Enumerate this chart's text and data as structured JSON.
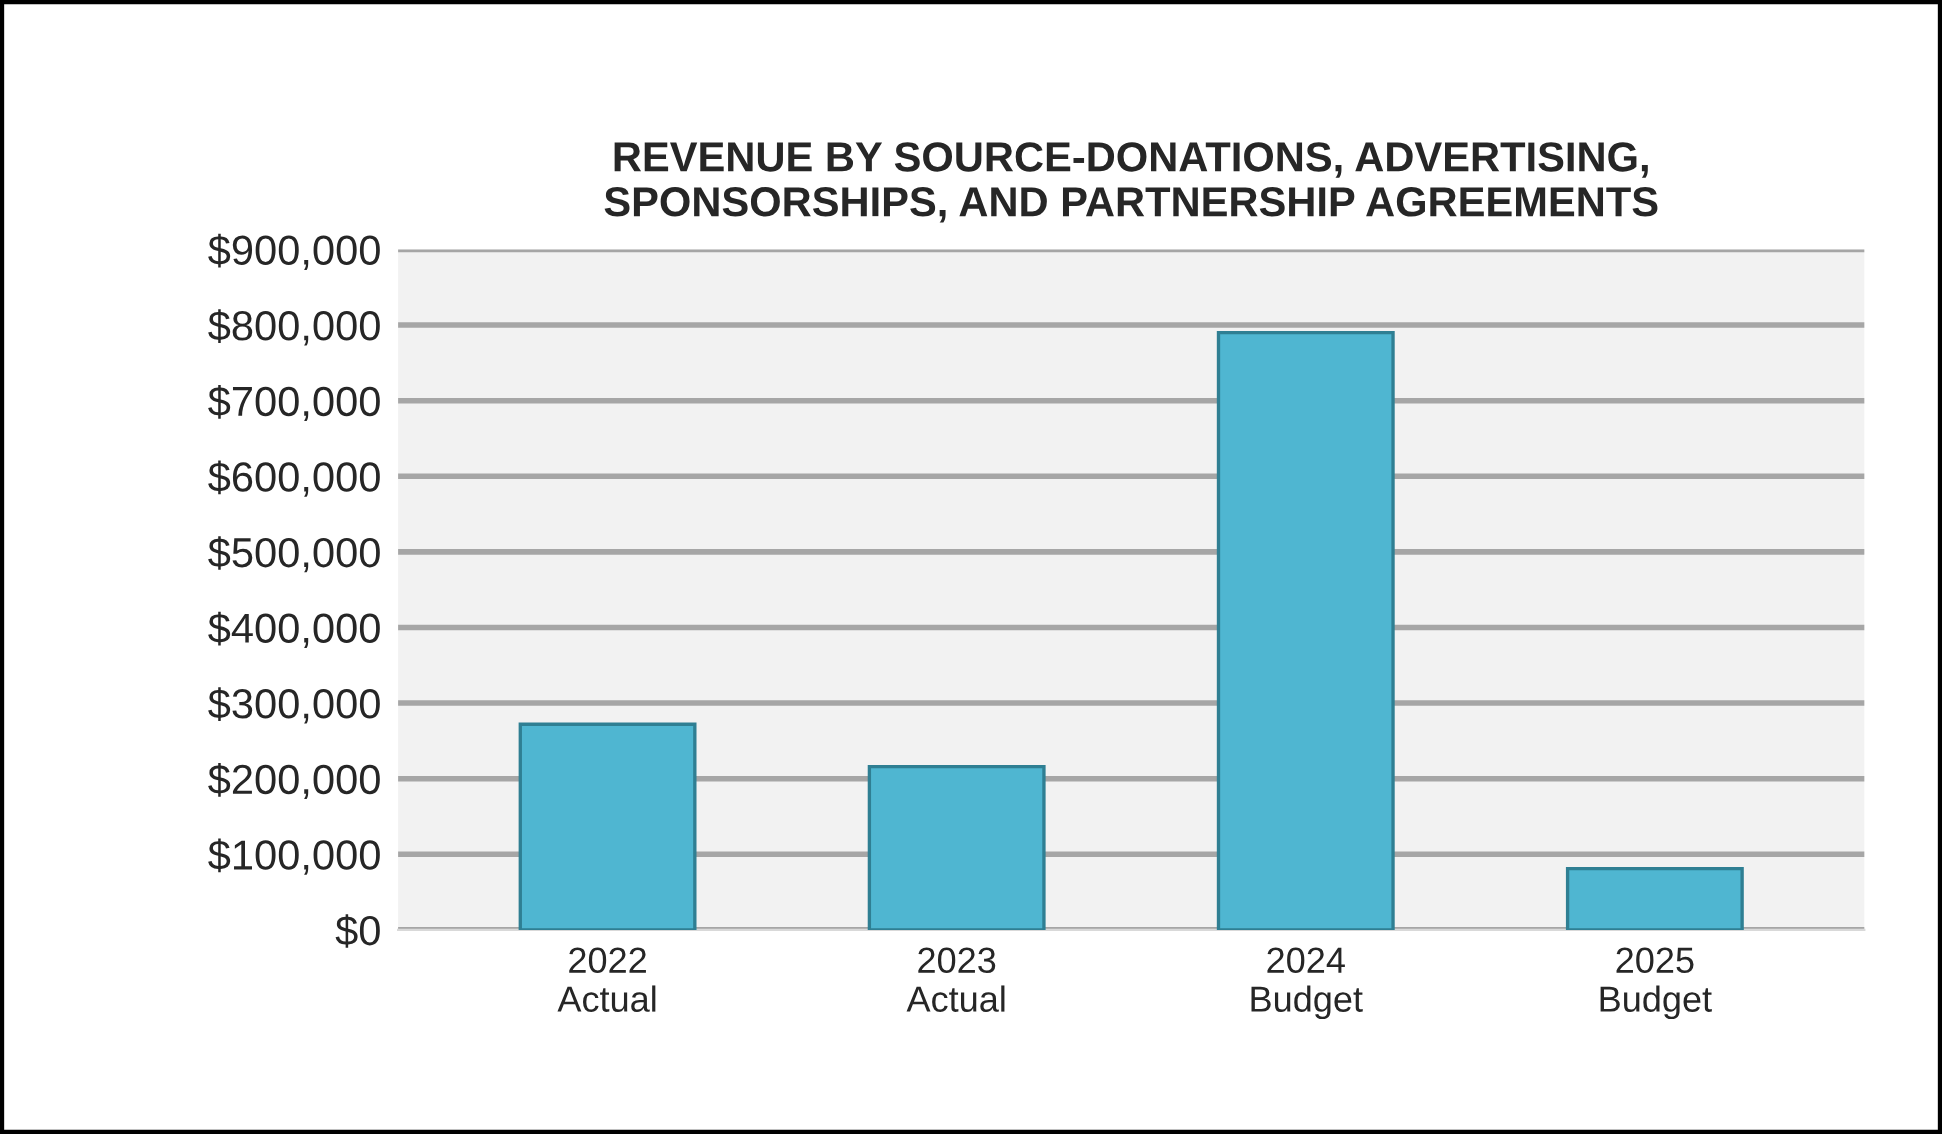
{
  "chart_data": {
    "type": "bar",
    "title": "REVENUE BY SOURCE-DONATIONS, ADVERTISING,\nSPONSORSHIPS, AND PARTNERSHIP AGREEMENTS",
    "categories": [
      "2022\nActual",
      "2023\nActual",
      "2024\nBudget",
      "2025\nBudget"
    ],
    "values": [
      272000,
      216000,
      790000,
      81000
    ],
    "color": "#4fb6d1",
    "ylim": [
      0,
      900000
    ],
    "yticks": [
      {
        "value": 0,
        "label": "$0"
      },
      {
        "value": 100000,
        "label": "$100,000"
      },
      {
        "value": 200000,
        "label": "$200,000"
      },
      {
        "value": 300000,
        "label": "$300,000"
      },
      {
        "value": 400000,
        "label": "$400,000"
      },
      {
        "value": 500000,
        "label": "$500,000"
      },
      {
        "value": 600000,
        "label": "$600,000"
      },
      {
        "value": 700000,
        "label": "$700,000"
      },
      {
        "value": 800000,
        "label": "$800,000"
      },
      {
        "value": 900000,
        "label": "$900,000"
      }
    ],
    "grid": "y"
  }
}
